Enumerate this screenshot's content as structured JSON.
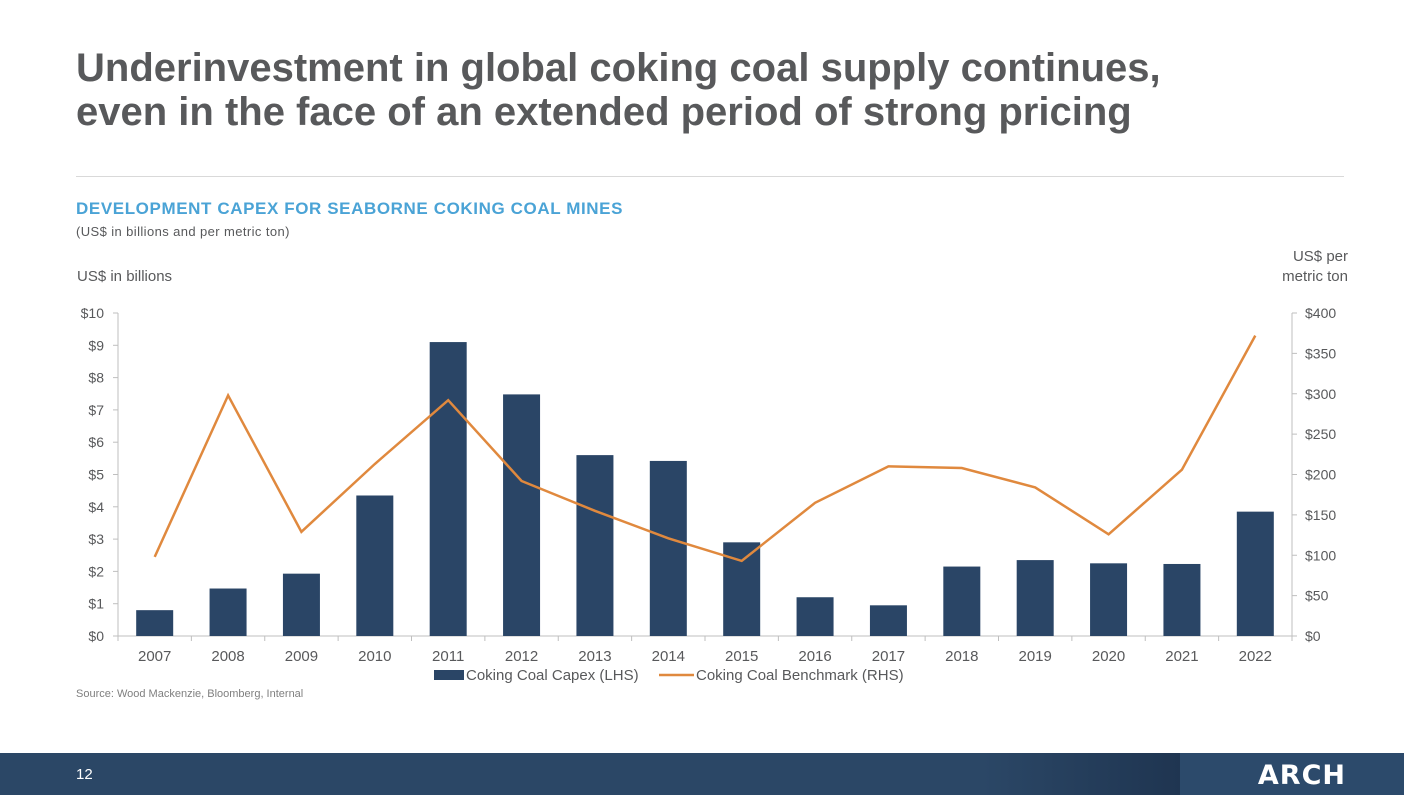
{
  "slide": {
    "title_line1": "Underinvestment in global coking coal supply continues,",
    "title_line2": "even in the face of an extended period of strong pricing",
    "chart_heading": "DEVELOPMENT CAPEX FOR SEABORNE COKING COAL MINES",
    "chart_subheading": "(US$ in billions and per metric ton)",
    "source": "Source: Wood Mackenzie, Bloomberg, Internal",
    "page_number": "12",
    "brand": "ARCH"
  },
  "colors": {
    "bar": "#2a4566",
    "line": "#e0893e",
    "axis": "#bfbfbf",
    "text": "#58595b",
    "heading": "#4aa3d6"
  },
  "chart_data": {
    "type": "bar",
    "categories": [
      "2007",
      "2008",
      "2009",
      "2010",
      "2011",
      "2012",
      "2013",
      "2014",
      "2015",
      "2016",
      "2017",
      "2018",
      "2019",
      "2020",
      "2021",
      "2022"
    ],
    "series": [
      {
        "name": "Coking Coal Capex (LHS)",
        "type": "bar",
        "axis": "left",
        "values": [
          0.8,
          1.47,
          1.93,
          4.35,
          9.1,
          7.48,
          5.6,
          5.42,
          2.9,
          1.2,
          0.95,
          2.15,
          2.35,
          2.25,
          2.23,
          3.85
        ]
      },
      {
        "name": "Coking Coal Benchmark (RHS)",
        "type": "line",
        "axis": "right",
        "values": [
          98,
          298,
          129,
          213,
          292,
          192,
          155,
          121,
          93,
          165,
          210,
          208,
          184,
          126,
          206,
          372
        ]
      }
    ],
    "left_axis": {
      "label": "US$ in billions",
      "min": 0,
      "max": 10,
      "ticks": [
        "$0",
        "$1",
        "$2",
        "$3",
        "$4",
        "$5",
        "$6",
        "$7",
        "$8",
        "$9",
        "$10"
      ]
    },
    "right_axis": {
      "label_line1": "US$ per",
      "label_line2": "metric ton",
      "min": 0,
      "max": 400,
      "ticks": [
        "$0",
        "$50",
        "$100",
        "$150",
        "$200",
        "$250",
        "$300",
        "$350",
        "$400"
      ]
    },
    "grid": false,
    "legend_position": "bottom"
  }
}
